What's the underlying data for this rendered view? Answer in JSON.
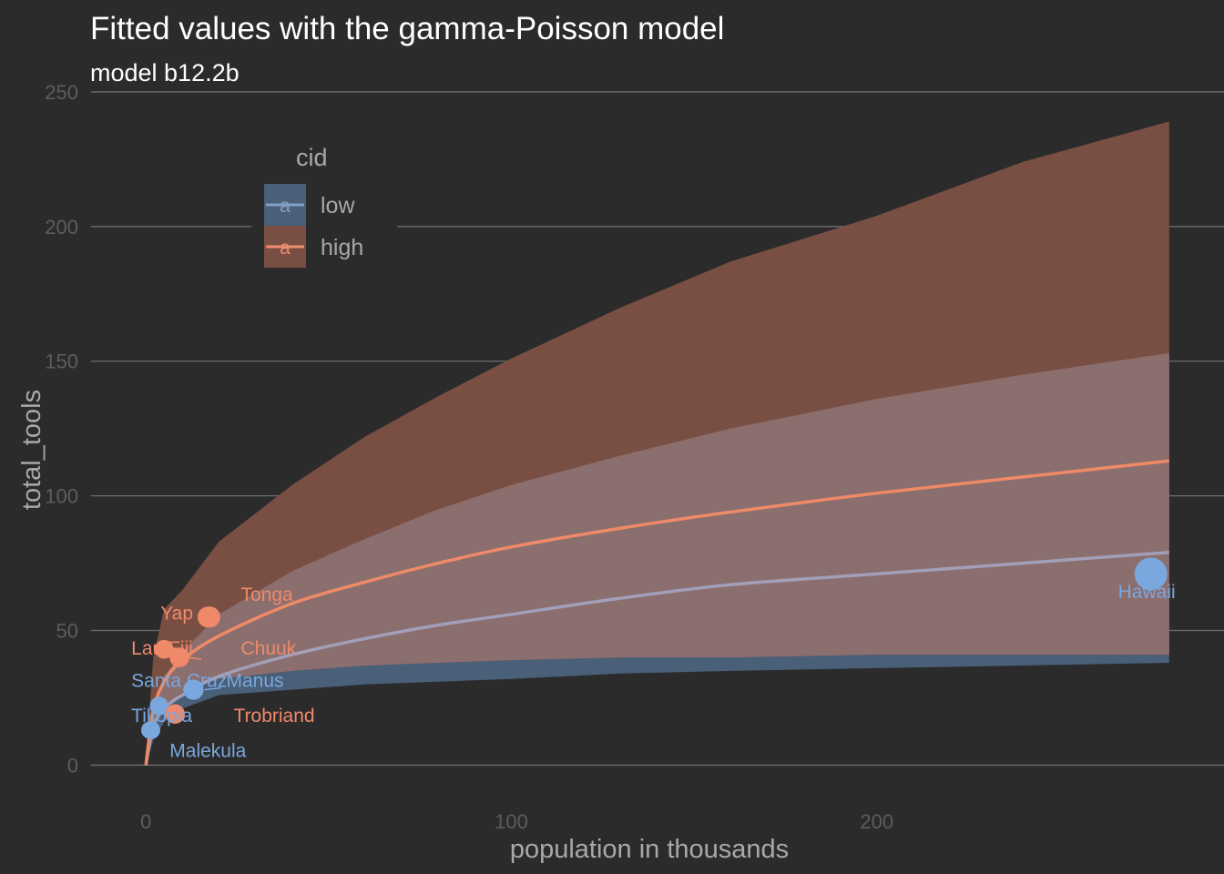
{
  "chart_data": {
    "type": "scatter",
    "title": "Fitted values with the gamma-Poisson model",
    "subtitle": "model b12.2b",
    "xlabel": "population in thousands",
    "ylabel": "total_tools",
    "xlim": [
      -15,
      295
    ],
    "ylim": [
      -10,
      252
    ],
    "x_ticks": [
      0,
      100,
      200
    ],
    "y_ticks": [
      0,
      50,
      100,
      150,
      200,
      250
    ],
    "grid": true,
    "legend": {
      "title": "cid",
      "placement": "top-left-inside",
      "key_glyph": "a",
      "entries": [
        {
          "label": "low",
          "color": "#80a0c7"
        },
        {
          "label": "high",
          "color": "#ea8d72"
        }
      ]
    },
    "colors": {
      "background": "#2b2b2b",
      "grid": "#6e6e6e",
      "low_point": "#7aa7dd",
      "low_ribbon": "#4a5f78",
      "low_line": "#a29fb8",
      "high_point": "#f0896a",
      "high_ribbon": "#7a4f43",
      "high_line": "#ef8a68",
      "overlap_ribbon": "#8b6e6e"
    },
    "series": [
      {
        "name": "low",
        "fitted": {
          "x": [
            0,
            2,
            5,
            10,
            20,
            40,
            60,
            80,
            100,
            130,
            160,
            200,
            240,
            280
          ],
          "y": [
            0,
            14,
            21,
            26,
            33,
            41,
            47,
            52,
            56,
            62,
            67,
            71,
            75,
            79
          ]
        },
        "ribbon_lower": [
          0,
          9,
          16,
          21,
          26,
          28,
          30,
          31,
          32,
          34,
          35,
          36,
          37,
          38
        ],
        "ribbon_upper": [
          0,
          20,
          33,
          42,
          56,
          72,
          84,
          95,
          104,
          115,
          125,
          136,
          145,
          153
        ],
        "points": [
          {
            "label": "Malekula",
            "x": 1.1,
            "y": 13
          },
          {
            "label": "Tikopia",
            "x": 1.5,
            "y": 13
          },
          {
            "label": "Santa Cruz",
            "x": 3.6,
            "y": 22
          },
          {
            "label": "Manus",
            "x": 13,
            "y": 28
          },
          {
            "label": "Hawaii",
            "x": 275,
            "y": 71
          }
        ]
      },
      {
        "name": "high",
        "fitted": {
          "x": [
            0,
            2,
            5,
            10,
            20,
            40,
            60,
            80,
            100,
            130,
            160,
            200,
            240,
            280
          ],
          "y": [
            0,
            20,
            31,
            39,
            48,
            60,
            68,
            75,
            81,
            88,
            94,
            101,
            107,
            113
          ]
        },
        "ribbon_lower": [
          0,
          14,
          22,
          27,
          32,
          35,
          37,
          38,
          39,
          40,
          40,
          41,
          41,
          41
        ],
        "ribbon_upper": [
          0,
          40,
          58,
          65,
          83,
          104,
          122,
          137,
          151,
          170,
          187,
          204,
          224,
          239
        ],
        "points": [
          {
            "label": "Lau Fiji",
            "x": 5,
            "y": 43
          },
          {
            "label": "Trobriand",
            "x": 8,
            "y": 19
          },
          {
            "label": "Chuuk",
            "x": 9.2,
            "y": 40
          },
          {
            "label": "Yap",
            "x": 17,
            "y": 55
          },
          {
            "label": "Tonga",
            "x": 17.5,
            "y": 55
          }
        ]
      }
    ],
    "point_labels": [
      {
        "text": "Malekula",
        "x": 6.5,
        "y": 3,
        "series": "low",
        "clip_px": 0
      },
      {
        "text": "Tikopia",
        "x": -4,
        "y": 16,
        "series": "low",
        "clip_px": 0
      },
      {
        "text": "Santa Cruz",
        "x": -4,
        "y": 29,
        "series": "low",
        "clip_px": 0
      },
      {
        "text": "Manus",
        "x": 22,
        "y": 29,
        "series": "low",
        "clip_px": 0
      },
      {
        "text": "Hawaii",
        "x": 266,
        "y": 62,
        "series": "low",
        "clip_px": 0
      },
      {
        "text": "Lau Fiji",
        "x": -4,
        "y": 41,
        "series": "high",
        "clip_px": 0
      },
      {
        "text": "Trobriand",
        "x": 24,
        "y": 16,
        "series": "high",
        "clip_px": 0
      },
      {
        "text": "Chuuk",
        "x": 26,
        "y": 41,
        "series": "high",
        "clip_px": 0
      },
      {
        "text": "Yap",
        "x": 4,
        "y": 54,
        "series": "high",
        "clip_px": 0
      },
      {
        "text": "Tonga",
        "x": 26,
        "y": 61,
        "series": "high",
        "clip_px": 0
      }
    ]
  }
}
